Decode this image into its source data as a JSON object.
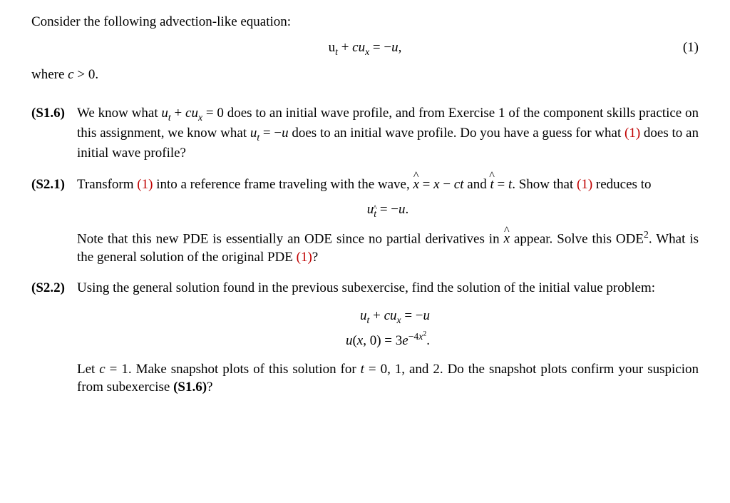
{
  "intro": "Consider the following advection-like equation:",
  "eq1_num": "(1)",
  "where": "where ",
  "s16": {
    "tag": "(S1.6)",
    "a": "We know what ",
    "b": " does to an initial wave profile, and from Exercise 1 of the component skills practice on this assignment, we know what ",
    "c": " does to an initial wave profile. Do you have a guess for what ",
    "d": " does to an initial wave profile?"
  },
  "s21": {
    "tag": "(S2.1)",
    "a": "Transform ",
    "b": " into a reference frame traveling with the wave, ",
    "c": ". Show that ",
    "d": " reduces to",
    "note_a": "Note that this new PDE is essentially an ODE since no partial derivatives in ",
    "note_b": " appear. Solve this ODE",
    "note_c": ". What is the general solution of the original PDE ",
    "note_d": "?"
  },
  "s22": {
    "tag": "(S2.2)",
    "a": "Using the general solution found in the previous subexercise, find the solution of the initial value problem:",
    "c1": "Let ",
    "c2": ". Make snapshot plots of this solution for ",
    "c3": ", and 2. Do the snapshot plots confirm your suspicion from subexercise ",
    "c4": "?"
  },
  "refs": {
    "one": "(1)",
    "s16": "(S1.6)"
  },
  "math": {
    "eq1": "u<sub class='sub'><span class='it'>t</span></sub> + <span class='it'>cu</span><sub class='sub'><span class='it'>x</span></sub> = −<span class='it'>u</span>,",
    "cgt0": "<span class='it'>c</span> &gt; 0.",
    "ut_cux_0": "<span class='it'>u</span><sub class='sub'><span class='it'>t</span></sub> + <span class='it'>cu</span><sub class='sub'><span class='it'>x</span></sub> = 0",
    "ut_mu": "<span class='it'>u</span><sub class='sub'><span class='it'>t</span></sub> = −<span class='it'>u</span>",
    "xhat": "<span class='hat'><span class='it'>x</span></span> = <span class='it'>x</span> − <span class='it'>ct</span>",
    "that": "<span class='hat'><span class='it'>t</span></span>&nbsp;= <span class='it'>t</span>",
    "and": " and ",
    "uthat": "<span class='it'>u</span><sub class='sub'><span class='hat'><span class='it'>t</span></span></sub> = −<span class='it'>u</span>.",
    "xhat_alone": "<span class='hat'><span class='it'>x</span></span>",
    "fn2": "2",
    "ivp_line1": "<span class='it'>u</span><sub class='sub'><span class='it'>t</span></sub> + <span class='it'>cu</span><sub class='sub'><span class='it'>x</span></sub> = −<span class='it'>u</span>",
    "ivp_line2": "<span class='it'>u</span>(<span class='it'>x</span>, 0) = 3<span class='it'>e</span><sup class='sup'>−4<span class='it'>x</span><sup class='sup'>2</sup></sup>.",
    "c_eq_1": "<span class='it'>c</span> = 1",
    "t_eq_01": "<span class='it'>t</span> = 0, 1"
  }
}
